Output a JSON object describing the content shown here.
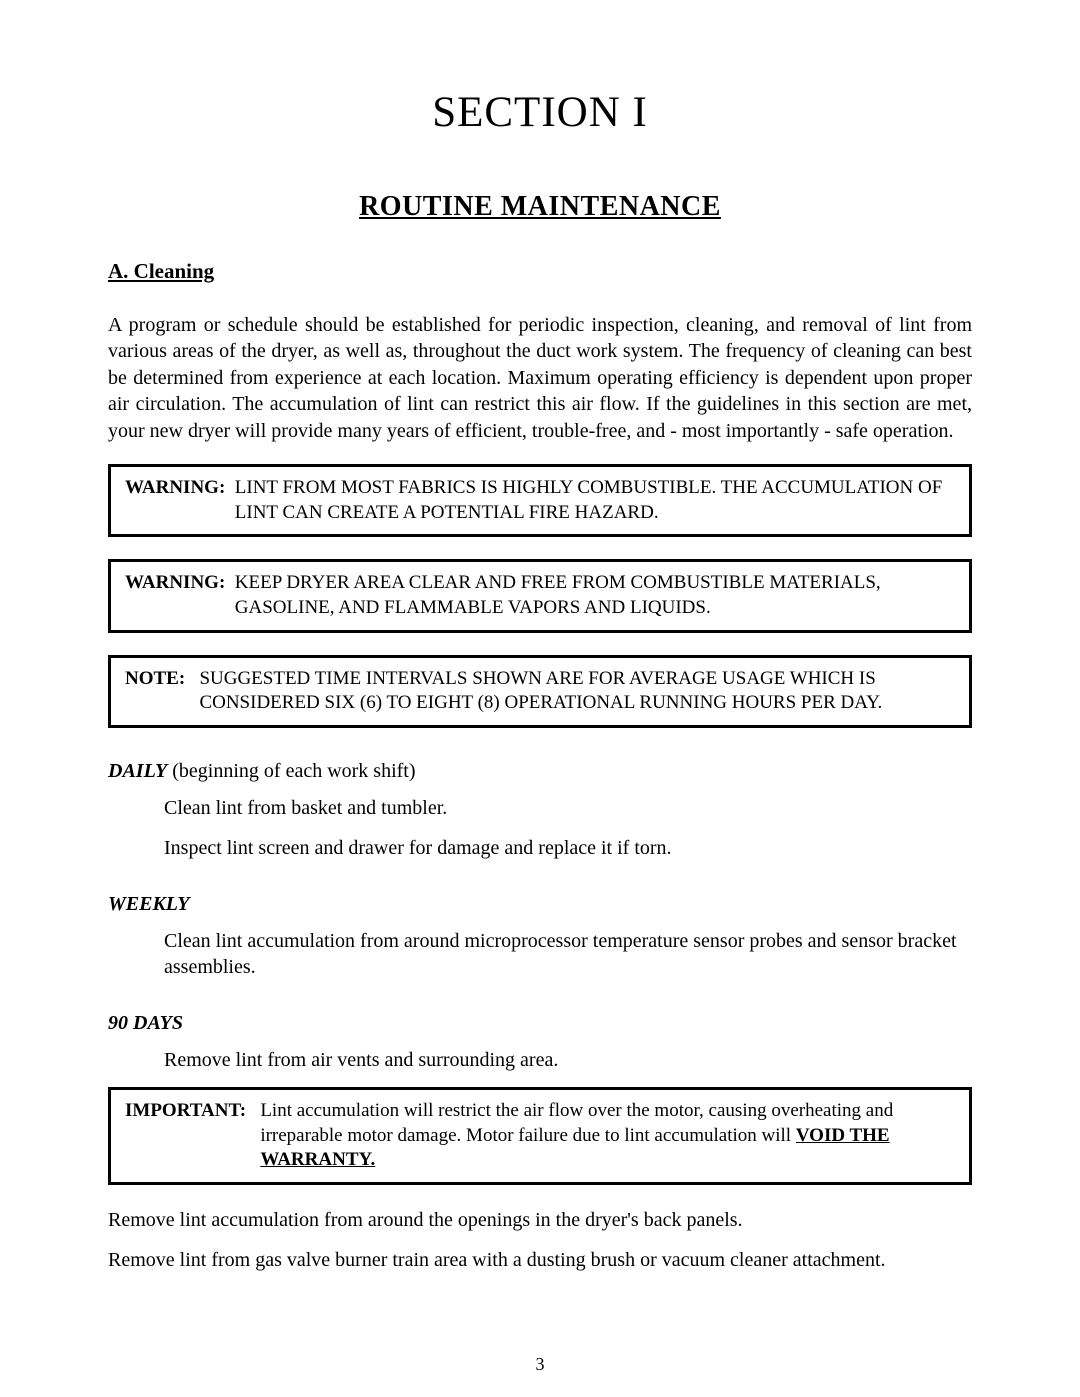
{
  "title": "SECTION I",
  "subtitle": "ROUTINE MAINTENANCE",
  "subsectionA": "A.   Cleaning",
  "intro": "A program or schedule should be established for periodic inspection, cleaning, and removal of lint from various areas of the dryer, as well as, throughout the duct work system.  The frequency of cleaning can best be determined from experience at each location.  Maximum operating efficiency is dependent upon proper air circulation.  The accumulation of lint can restrict this air flow.  If the guidelines in this section are met, your new dryer will provide many years of efficient, trouble-free, and - most importantly - safe operation.",
  "warning1": {
    "label": "WARNING:  ",
    "text": "LINT FROM MOST FABRICS IS HIGHLY COMBUSTIBLE. THE ACCUMULATION OF LINT CAN CREATE A POTENTIAL FIRE HAZARD."
  },
  "warning2": {
    "label": "WARNING:  ",
    "text": "KEEP DRYER AREA CLEAR AND FREE FROM COMBUSTIBLE MATERIALS, GASOLINE, AND FLAMMABLE  VAPORS AND LIQUIDS."
  },
  "note": {
    "label": "NOTE:   ",
    "text": "SUGGESTED TIME INTERVALS SHOWN ARE FOR AVERAGE USAGE WHICH IS CONSIDERED SIX (6) TO EIGHT (8) OPERATIONAL RUNNING HOURS PER DAY."
  },
  "daily": {
    "lead": "DAILY",
    "tail": " (beginning of each work shift)",
    "items": [
      "Clean lint from  basket and tumbler.",
      "Inspect lint screen and drawer for damage and replace it if torn."
    ]
  },
  "weekly": {
    "lead": "WEEKLY",
    "items": [
      "Clean lint accumulation from around microprocessor temperature sensor probes and sensor bracket assemblies."
    ]
  },
  "ninety": {
    "lead": "90 DAYS",
    "items": [
      "Remove lint from air  vents and surrounding area."
    ]
  },
  "important": {
    "label": "IMPORTANT:   ",
    "text": "Lint accumulation will restrict the air  flow over  the motor, causing overheating and irreparable motor damage.  Motor failure due to lint accumulation will ",
    "emph": "VOID THE WARRANTY."
  },
  "after1": "Remove lint accumulation from around the openings in the dryer's back panels.",
  "after2": "Remove lint from gas valve burner train area with a dusting brush or vacuum cleaner attachment.",
  "pageNumber": "3"
}
